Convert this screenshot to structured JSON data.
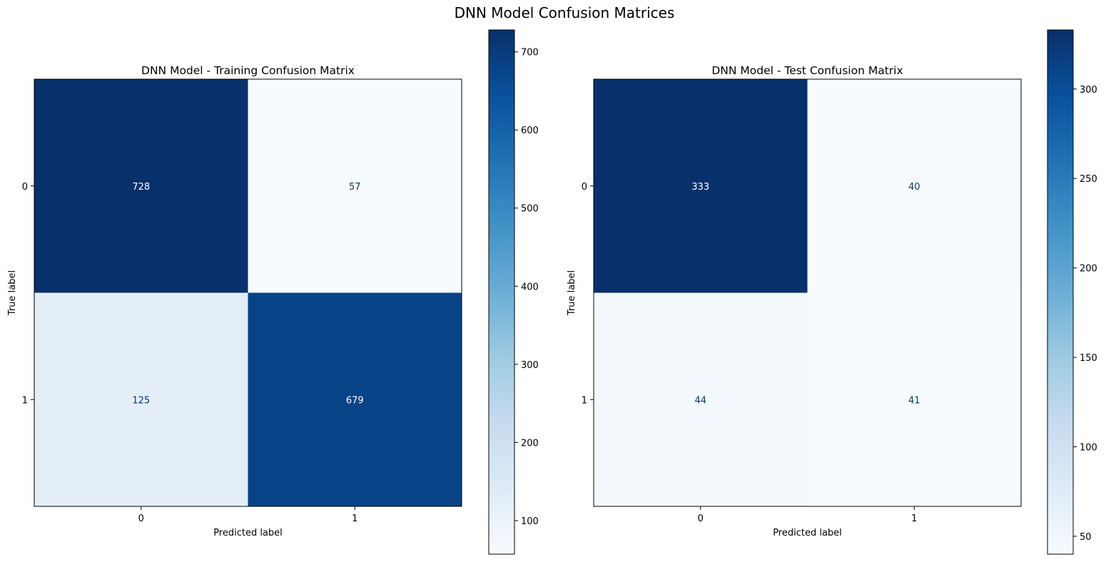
{
  "figure": {
    "title": "DNN Model Confusion Matrices"
  },
  "chart_data": [
    {
      "type": "heatmap",
      "title": "DNN Model - Training Confusion Matrix",
      "xlabel": "Predicted label",
      "ylabel": "True label",
      "x_categories": [
        "0",
        "1"
      ],
      "y_categories": [
        "0",
        "1"
      ],
      "values": [
        [
          728,
          57
        ],
        [
          125,
          679
        ]
      ],
      "colormap": "Blues",
      "colorbar": {
        "min": 57,
        "max": 728,
        "ticks": [
          100,
          200,
          300,
          400,
          500,
          600,
          700
        ]
      }
    },
    {
      "type": "heatmap",
      "title": "DNN Model - Test Confusion Matrix",
      "xlabel": "Predicted label",
      "ylabel": "True label",
      "x_categories": [
        "0",
        "1"
      ],
      "y_categories": [
        "0",
        "1"
      ],
      "values": [
        [
          333,
          40
        ],
        [
          44,
          41
        ]
      ],
      "colormap": "Blues",
      "colorbar": {
        "min": 40,
        "max": 333,
        "ticks": [
          50,
          100,
          150,
          200,
          250,
          300
        ]
      }
    }
  ]
}
